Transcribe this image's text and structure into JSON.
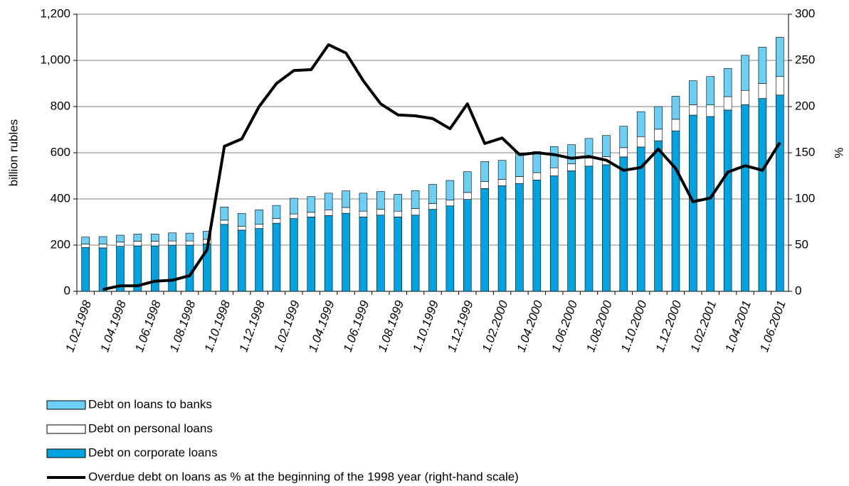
{
  "chart_data": {
    "type": "bar",
    "y_label": "billion rubles",
    "y2_label": "%",
    "categories": [
      "1.02.1998",
      null,
      "1.04.1998",
      null,
      "1.06.1998",
      null,
      "1.08.1998",
      null,
      "1.10.1998",
      null,
      "1.12.1998",
      null,
      "1.02.1999",
      null,
      "1.04.1999",
      null,
      "1.06.1999",
      null,
      "1.08.1999",
      null,
      "1.10.1999",
      null,
      "1.12.1999",
      null,
      "1.02.2000",
      null,
      "1.04.2000",
      null,
      "1.06.2000",
      null,
      "1.08.2000",
      null,
      "1.10.2000",
      null,
      "1.12.2000",
      null,
      "1.02.2001",
      null,
      "1.04.2001",
      null,
      "1.06.2001"
    ],
    "series": [
      {
        "name": "Debt on corporate loans",
        "color": "#00a2e0",
        "type": "bar",
        "values": [
          190,
          188,
          195,
          197,
          197,
          200,
          200,
          205,
          290,
          265,
          272,
          295,
          315,
          322,
          328,
          338,
          322,
          330,
          322,
          330,
          355,
          370,
          398,
          445,
          457,
          467,
          482,
          500,
          522,
          542,
          548,
          582,
          625,
          652,
          695,
          763,
          757,
          785,
          808,
          835,
          850
        ]
      },
      {
        "name": "Debt on personal loans",
        "color": "#ffffff",
        "type": "bar",
        "values": [
          15,
          17,
          18,
          20,
          20,
          18,
          18,
          20,
          18,
          17,
          18,
          20,
          20,
          20,
          25,
          25,
          25,
          25,
          25,
          28,
          25,
          25,
          30,
          30,
          28,
          30,
          32,
          35,
          30,
          35,
          35,
          40,
          45,
          50,
          50,
          45,
          50,
          58,
          62,
          65,
          80
        ]
      },
      {
        "name": "Debt on loans to banks",
        "color": "#6ccff6",
        "type": "bar",
        "values": [
          30,
          32,
          30,
          31,
          31,
          35,
          34,
          35,
          57,
          55,
          63,
          57,
          68,
          68,
          72,
          72,
          78,
          77,
          73,
          78,
          83,
          85,
          90,
          87,
          82,
          101,
          91,
          92,
          83,
          85,
          92,
          93,
          108,
          98,
          100,
          104,
          123,
          122,
          152,
          157,
          170
        ]
      },
      {
        "name": "Overdue debt on loans as % at the beginning of the 1998 year (right-hand scale)",
        "color": "#000000",
        "type": "line",
        "axis": "y2",
        "values": [
          null,
          2,
          6,
          6,
          11,
          12,
          17,
          45,
          157,
          165,
          200,
          225,
          239,
          240,
          267,
          258,
          228,
          203,
          191,
          190,
          187,
          176,
          203,
          160,
          166,
          148,
          150,
          148,
          144,
          146,
          142,
          131,
          134,
          154,
          133,
          97,
          101,
          129,
          136,
          131,
          161
        ]
      }
    ],
    "ylim": [
      0,
      1200
    ],
    "yticks": [
      0,
      200,
      400,
      600,
      800,
      {
        "value": 1000,
        "label": "1,000"
      },
      {
        "value": 1200,
        "label": "1,200"
      }
    ],
    "y2lim": [
      0,
      300
    ],
    "y2ticks": [
      0,
      50,
      100,
      150,
      200,
      250,
      300
    ],
    "grid": true
  }
}
